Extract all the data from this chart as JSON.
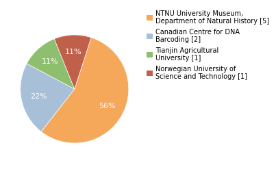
{
  "labels": [
    "NTNU University Museum,\nDepartment of Natural History [5]",
    "Canadian Centre for DNA\nBarcoding [2]",
    "Tianjin Agricultural\nUniversity [1]",
    "Norwegian University of\nScience and Technology [1]"
  ],
  "values": [
    5,
    2,
    1,
    1
  ],
  "colors": [
    "#f5a85a",
    "#a8bfd8",
    "#8dbf6e",
    "#c0604a"
  ],
  "startangle": 72,
  "legend_fontsize": 7.0,
  "autopct_fontsize": 8.0,
  "background_color": "#ffffff"
}
